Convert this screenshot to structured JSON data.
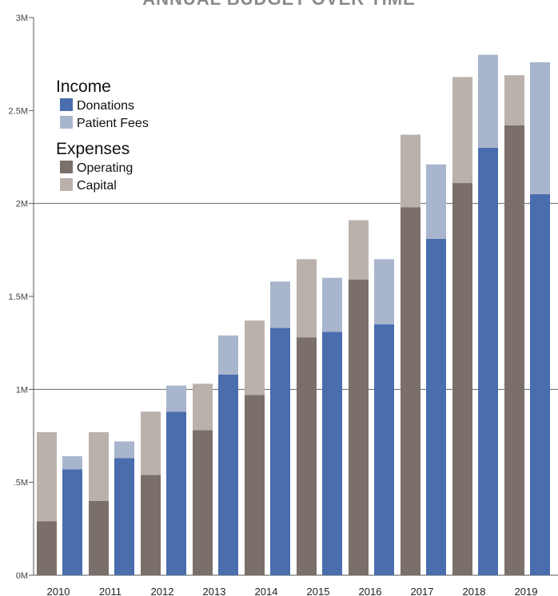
{
  "chart_data": {
    "type": "bar",
    "title": "ANNUAL BUDGET OVER TIME",
    "years": [
      "2010",
      "2011",
      "2012",
      "2013",
      "2014",
      "2015",
      "2016",
      "2017",
      "2018",
      "2019"
    ],
    "ylim": [
      0,
      3000000
    ],
    "y_ticks": [
      {
        "value": 0,
        "label": "0M"
      },
      {
        "value": 500000,
        "label": ".5M"
      },
      {
        "value": 1000000,
        "label": "1M"
      },
      {
        "value": 1500000,
        "label": "1.5M"
      },
      {
        "value": 2000000,
        "label": "2M"
      },
      {
        "value": 2500000,
        "label": "2.5M"
      },
      {
        "value": 3000000,
        "label": "3M"
      }
    ],
    "major_gridlines": [
      1000000,
      2000000
    ],
    "stacks": [
      {
        "group": "Expenses",
        "series": [
          "Operating",
          "Capital"
        ]
      },
      {
        "group": "Income",
        "series": [
          "Donations",
          "Patient Fees"
        ]
      }
    ],
    "series": [
      {
        "name": "Operating",
        "group": "Expenses",
        "color": "#7a6f6b",
        "values": [
          290000,
          400000,
          540000,
          780000,
          970000,
          1280000,
          1590000,
          1980000,
          2110000,
          2420000
        ]
      },
      {
        "name": "Capital",
        "group": "Expenses",
        "color": "#bbb1ac",
        "values": [
          480000,
          370000,
          340000,
          250000,
          400000,
          420000,
          320000,
          390000,
          570000,
          270000
        ]
      },
      {
        "name": "Donations",
        "group": "Income",
        "color": "#4a6dae",
        "values": [
          570000,
          630000,
          880000,
          1080000,
          1330000,
          1310000,
          1350000,
          1810000,
          2300000,
          2050000
        ]
      },
      {
        "name": "Patient Fees",
        "group": "Income",
        "color": "#a8b5cc",
        "values": [
          70000,
          90000,
          140000,
          210000,
          250000,
          290000,
          350000,
          400000,
          500000,
          710000
        ]
      }
    ],
    "legend": {
      "position": "top-left",
      "groups": [
        {
          "heading": "Income",
          "items": [
            {
              "label": "Donations",
              "color": "#4a6dae"
            },
            {
              "label": "Patient Fees",
              "color": "#a8b5cc"
            }
          ]
        },
        {
          "heading": "Expenses",
          "items": [
            {
              "label": "Operating",
              "color": "#7a6f6b"
            },
            {
              "label": "Capital",
              "color": "#bbb1ac"
            }
          ]
        }
      ]
    }
  }
}
